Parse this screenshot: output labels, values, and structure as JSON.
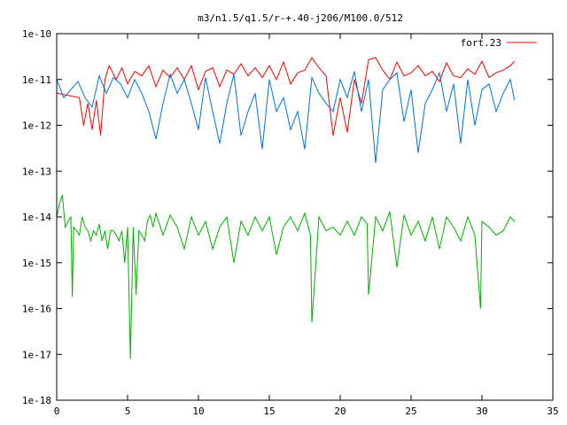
{
  "chart_data": {
    "type": "line",
    "title": "m3/n1.5/q1.5/r-+.40-j206/M100.0/512",
    "xlabel": "",
    "ylabel": "",
    "xlim": [
      0,
      35
    ],
    "ylim": [
      1e-18,
      1e-10
    ],
    "y_scale": "log",
    "grid": false,
    "legend_position": "top-right",
    "x_ticks": [
      {
        "value": 0,
        "label": "0"
      },
      {
        "value": 5,
        "label": "5"
      },
      {
        "value": 10,
        "label": "10"
      },
      {
        "value": 15,
        "label": "15"
      },
      {
        "value": 20,
        "label": "20"
      },
      {
        "value": 25,
        "label": "25"
      },
      {
        "value": 30,
        "label": "30"
      },
      {
        "value": 35,
        "label": "35"
      }
    ],
    "y_ticks": [
      {
        "value": 1e-10,
        "label": "1e-10"
      },
      {
        "value": 1e-11,
        "label": "1e-11"
      },
      {
        "value": 1e-12,
        "label": "1e-12"
      },
      {
        "value": 1e-13,
        "label": "1e-13"
      },
      {
        "value": 1e-14,
        "label": "1e-14"
      },
      {
        "value": 1e-15,
        "label": "1e-15"
      },
      {
        "value": 1e-16,
        "label": "1e-16"
      },
      {
        "value": 1e-17,
        "label": "1e-17"
      },
      {
        "value": 1e-18,
        "label": "1e-18"
      }
    ],
    "series": [
      {
        "name": "fort.23",
        "color": "#ff0000",
        "x": [
          0,
          0.8,
          1.6,
          1.9,
          2.2,
          2.5,
          2.8,
          3.1,
          3.4,
          3.7,
          4.2,
          4.6,
          5.0,
          5.5,
          6.0,
          6.5,
          7.0,
          7.5,
          8.0,
          8.5,
          9.0,
          9.5,
          10.0,
          10.5,
          11.0,
          11.5,
          12.0,
          12.5,
          13.0,
          13.5,
          14.0,
          14.5,
          15.0,
          15.5,
          16.0,
          16.5,
          17.0,
          17.5,
          18.0,
          18.5,
          19.0,
          19.5,
          20.0,
          20.5,
          21.0,
          21.5,
          22.0,
          22.5,
          23.0,
          23.5,
          24.0,
          24.5,
          25.0,
          25.5,
          26.0,
          26.5,
          27.0,
          27.5,
          28.0,
          28.5,
          29.0,
          29.5,
          30.0,
          30.5,
          31.0,
          31.5,
          32.0,
          32.3
        ],
        "y": [
          5e-12,
          4.5e-12,
          4e-12,
          1e-12,
          3e-12,
          8e-13,
          3.5e-12,
          6e-13,
          1e-11,
          2e-11,
          1e-11,
          1.8e-11,
          8e-12,
          1.5e-11,
          1.2e-11,
          2e-11,
          7e-12,
          1.6e-11,
          1.1e-11,
          1.8e-11,
          1e-11,
          2e-11,
          6e-12,
          1.5e-11,
          1.8e-11,
          7e-12,
          1.6e-11,
          1.3e-11,
          2.2e-11,
          1.2e-11,
          1.8e-11,
          1.1e-11,
          2e-11,
          1e-11,
          2.4e-11,
          8e-12,
          1.4e-11,
          1.6e-11,
          3e-11,
          1.8e-11,
          1.2e-11,
          6e-13,
          4e-12,
          7e-13,
          1e-11,
          3e-12,
          2.7e-11,
          3e-11,
          1.6e-11,
          1e-11,
          2.4e-11,
          1.2e-11,
          1.4e-11,
          2e-11,
          1.2e-11,
          1.5e-11,
          9e-12,
          2.3e-11,
          1.2e-11,
          1.1e-11,
          1.7e-11,
          1.3e-11,
          2.5e-11,
          1.1e-11,
          1.4e-11,
          1.6e-11,
          2e-11,
          2.5e-11
        ]
      },
      {
        "name": "",
        "color": "#0070e0",
        "x": [
          0,
          0.5,
          1.0,
          1.5,
          2.0,
          2.5,
          3.0,
          3.5,
          4.0,
          4.5,
          5.0,
          5.5,
          6.0,
          6.5,
          7.0,
          7.5,
          8.0,
          8.5,
          9.0,
          9.5,
          10.0,
          10.5,
          11.0,
          11.5,
          12.0,
          12.5,
          13.0,
          13.5,
          14.0,
          14.5,
          15.0,
          15.5,
          16.0,
          16.5,
          17.0,
          17.5,
          18.0,
          18.5,
          19.0,
          19.5,
          20.0,
          20.5,
          21.0,
          21.5,
          22.0,
          22.5,
          23.0,
          23.5,
          24.0,
          24.5,
          25.0,
          25.5,
          26.0,
          26.5,
          27.0,
          27.5,
          28.0,
          28.5,
          29.0,
          29.5,
          30.0,
          30.5,
          31.0,
          31.5,
          32.0,
          32.3
        ],
        "y": [
          1e-11,
          4e-12,
          6e-12,
          9e-12,
          4e-12,
          2.5e-12,
          1.2e-11,
          5e-12,
          1.1e-11,
          8e-12,
          4e-12,
          1e-11,
          5e-12,
          2e-12,
          5e-13,
          3e-12,
          1.3e-11,
          5e-12,
          1e-11,
          3e-12,
          8e-13,
          1.1e-11,
          2e-12,
          4e-13,
          3e-12,
          1.3e-11,
          6e-13,
          2e-12,
          5e-12,
          3e-13,
          1e-11,
          2e-12,
          4e-12,
          8e-13,
          2e-12,
          3e-13,
          1.1e-11,
          5e-12,
          3e-12,
          2e-12,
          1e-11,
          4e-12,
          1.5e-11,
          2e-12,
          1e-11,
          1.5e-13,
          6e-12,
          1e-11,
          1.4e-11,
          1.2e-12,
          6e-12,
          2.5e-13,
          3e-12,
          6e-12,
          1.4e-11,
          2e-12,
          8e-12,
          4e-13,
          1e-11,
          1e-12,
          6e-12,
          8e-12,
          2e-12,
          5e-12,
          1e-11,
          3.5e-12
        ]
      },
      {
        "name": "",
        "color": "#00b000",
        "x": [
          0,
          0.2,
          0.4,
          0.6,
          0.8,
          1.0,
          1.1,
          1.2,
          1.4,
          1.6,
          1.8,
          2.0,
          2.2,
          2.4,
          2.6,
          2.8,
          3.0,
          3.2,
          3.4,
          3.6,
          3.8,
          4.0,
          4.2,
          4.4,
          4.6,
          4.8,
          5.0,
          5.2,
          5.4,
          5.6,
          5.8,
          6.0,
          6.2,
          6.4,
          6.6,
          6.8,
          7.0,
          7.5,
          8.0,
          8.5,
          9.0,
          9.5,
          10.0,
          10.5,
          11.0,
          11.5,
          12.0,
          12.5,
          13.0,
          13.5,
          14.0,
          14.5,
          15.0,
          15.5,
          16.0,
          16.5,
          17.0,
          17.5,
          17.9,
          18.0,
          18.5,
          19.0,
          19.5,
          20.0,
          20.5,
          21.0,
          21.5,
          21.9,
          22.0,
          22.5,
          23.0,
          23.5,
          24.0,
          24.5,
          25.0,
          25.5,
          26.0,
          26.5,
          27.0,
          27.5,
          28.0,
          28.5,
          29.0,
          29.5,
          29.9,
          30.0,
          30.5,
          31.0,
          31.5,
          32.0,
          32.3
        ],
        "y": [
          1e-14,
          2e-14,
          3e-14,
          6e-15,
          8e-15,
          1e-14,
          1.8e-16,
          6e-15,
          5e-15,
          4e-15,
          1e-14,
          6e-15,
          5e-15,
          3e-15,
          5e-15,
          4e-15,
          7e-15,
          3e-15,
          5e-15,
          2e-15,
          5e-15,
          5e-15,
          4e-15,
          3e-15,
          5e-15,
          1e-15,
          6e-15,
          8e-18,
          6e-15,
          2e-16,
          5e-15,
          4e-15,
          3e-15,
          8e-15,
          1.1e-14,
          6e-15,
          1.2e-14,
          4e-15,
          1.1e-14,
          6e-15,
          2e-15,
          1e-14,
          4e-15,
          8e-15,
          2e-15,
          6e-15,
          1e-14,
          1e-15,
          8e-15,
          4e-15,
          1e-14,
          5e-15,
          1e-14,
          1.5e-15,
          6e-15,
          1e-14,
          5e-15,
          1.2e-14,
          4e-15,
          5e-17,
          1e-14,
          5e-15,
          6e-15,
          4e-15,
          8e-15,
          4e-15,
          1e-14,
          7e-15,
          2e-16,
          1e-14,
          5e-15,
          1.3e-14,
          8e-16,
          1.1e-14,
          4e-15,
          8e-15,
          3e-15,
          1e-14,
          2e-15,
          1e-14,
          6e-15,
          3e-15,
          1e-14,
          4e-15,
          1e-16,
          8e-15,
          6e-15,
          4e-15,
          5e-15,
          1e-14,
          8e-15
        ]
      }
    ]
  }
}
